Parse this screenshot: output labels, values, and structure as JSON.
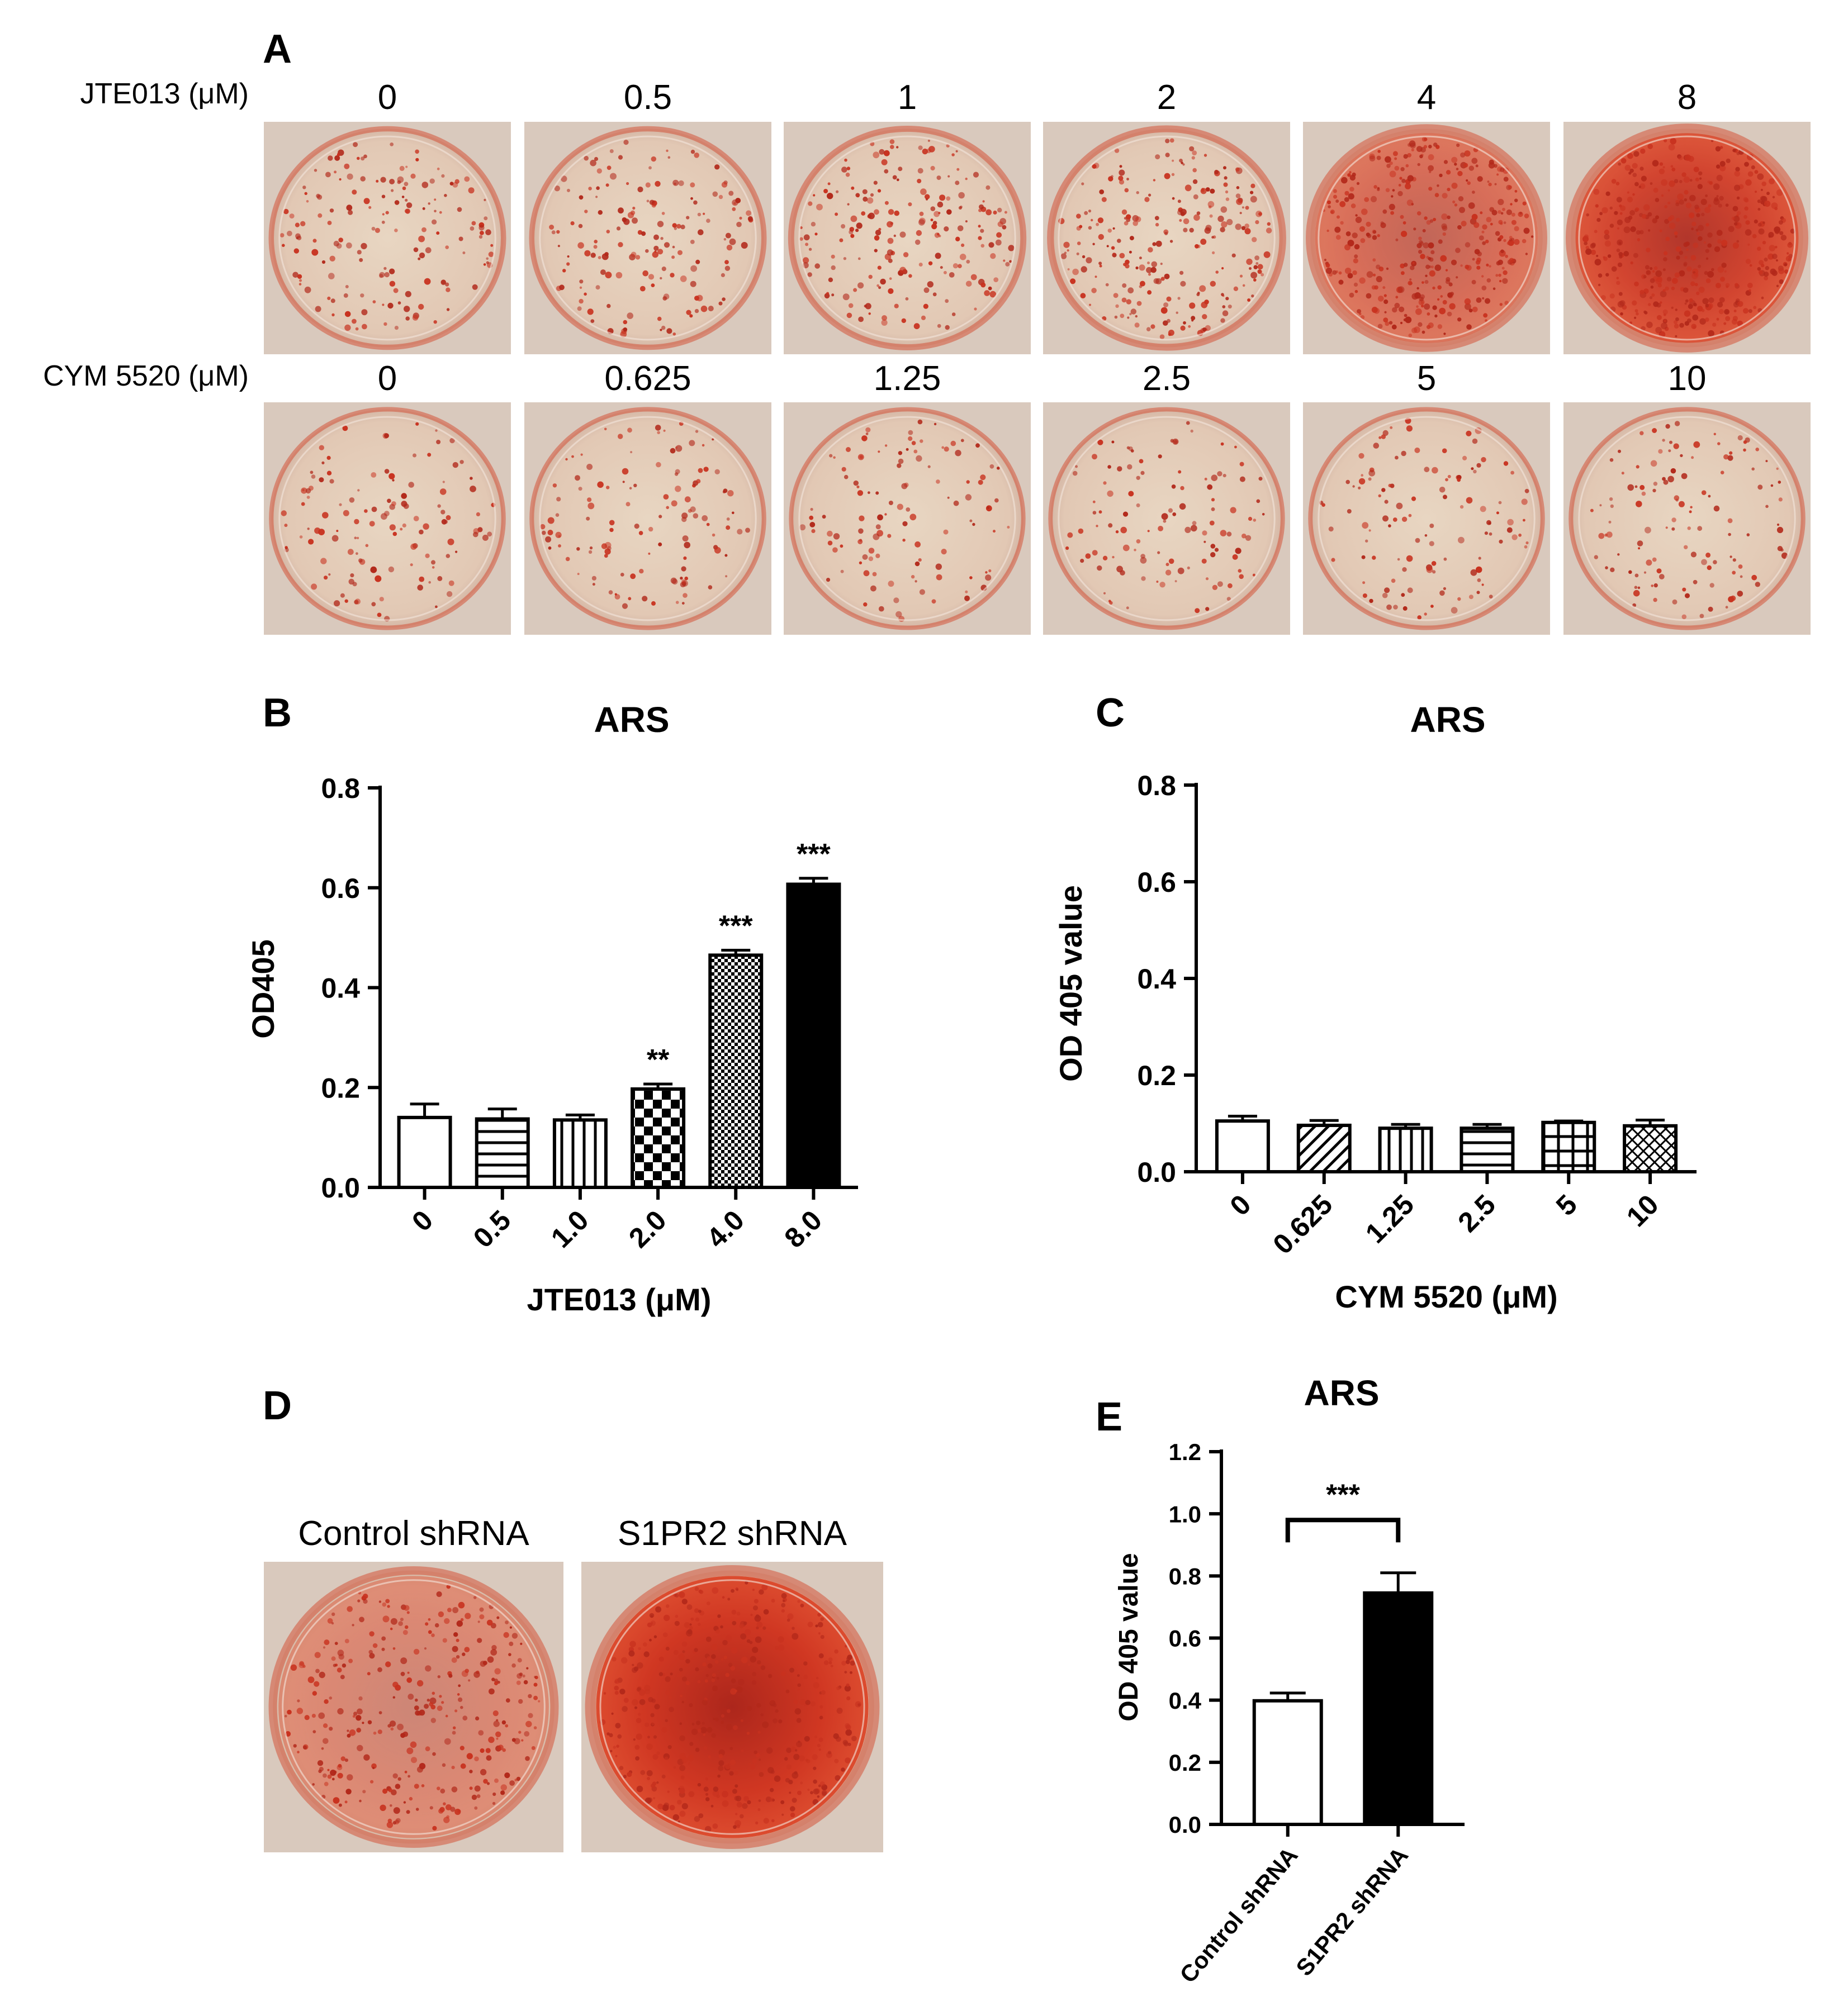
{
  "panel_a": {
    "letter": "A",
    "row1_label": "JTE013 (μM)",
    "row1_concs": [
      "0",
      "0.5",
      "1",
      "2",
      "4",
      "8"
    ],
    "row1_stain": [
      0.25,
      0.25,
      0.35,
      0.45,
      0.75,
      0.9
    ],
    "row2_label": "CYM 5520 (μM)",
    "row2_concs": [
      "0",
      "0.625",
      "1.25",
      "2.5",
      "5",
      "10"
    ],
    "row2_stain": [
      0.15,
      0.15,
      0.13,
      0.13,
      0.14,
      0.15
    ]
  },
  "panel_d": {
    "letter": "D",
    "labels": [
      "Control shRNA",
      "S1PR2 shRNA"
    ],
    "stain": [
      0.65,
      0.95
    ]
  },
  "chart_data": [
    {
      "panel": "B",
      "type": "bar",
      "title": "ARS",
      "ylabel": "OD405",
      "xlabel": "JTE013 (μM)",
      "categories": [
        "0",
        "0.5",
        "1.0",
        "2.0",
        "4.0",
        "8.0"
      ],
      "values": [
        0.14,
        0.137,
        0.135,
        0.197,
        0.465,
        0.607
      ],
      "errors": [
        0.027,
        0.02,
        0.01,
        0.01,
        0.01,
        0.012
      ],
      "patterns": [
        "none",
        "hlines",
        "vlines",
        "check",
        "finecheck",
        "solid"
      ],
      "significance": [
        "",
        "",
        "",
        "**",
        "***",
        "***"
      ],
      "ylim": [
        0,
        0.8
      ],
      "yticks": [
        "0.0",
        "0.2",
        "0.4",
        "0.6",
        "0.8"
      ]
    },
    {
      "panel": "C",
      "type": "bar",
      "title": "ARS",
      "ylabel": "OD 405 value",
      "xlabel": "CYM 5520 (μM)",
      "categories": [
        "0",
        "0.625",
        "1.25",
        "2.5",
        "5",
        "10"
      ],
      "values": [
        0.105,
        0.096,
        0.09,
        0.09,
        0.102,
        0.095
      ],
      "errors": [
        0.01,
        0.01,
        0.008,
        0.008,
        0.003,
        0.012
      ],
      "patterns": [
        "none",
        "diag",
        "vlines",
        "hlines",
        "grid",
        "cross"
      ],
      "ylim": [
        0,
        0.8
      ],
      "yticks": [
        "0.0",
        "0.2",
        "0.4",
        "0.6",
        "0.8"
      ]
    },
    {
      "panel": "E",
      "type": "bar",
      "title": "ARS",
      "ylabel": "OD 405 value",
      "categories": [
        "Control shRNA",
        "S1PR2 shRNA"
      ],
      "values": [
        0.398,
        0.745
      ],
      "errors": [
        0.025,
        0.065
      ],
      "fills": [
        "white",
        "black"
      ],
      "significance": "***",
      "ylim": [
        0,
        1.2
      ],
      "yticks": [
        "0.0",
        "0.2",
        "0.4",
        "0.6",
        "0.8",
        "1.0",
        "1.2"
      ]
    }
  ]
}
